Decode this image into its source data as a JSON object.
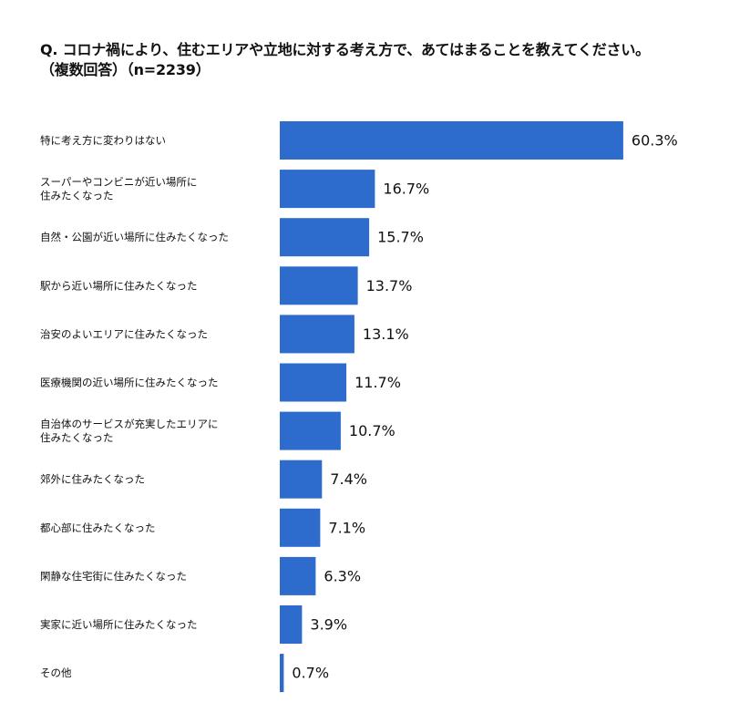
{
  "chart_data": {
    "type": "bar",
    "orientation": "horizontal",
    "title": "Q. コロナ禍により、住むエリアや立地に対する考え方で、あてはまることを教えてください。",
    "subtitle": "（複数回答）（n=2239）",
    "categories": [
      "特に考え方に変わりはない",
      "スーパーやコンビニが近い場所に\n住みたくなった",
      "自然・公園が近い場所に住みたくなった",
      "駅から近い場所に住みたくなった",
      "治安のよいエリアに住みたくなった",
      "医療機関の近い場所に住みたくなった",
      "自治体のサービスが充実したエリアに\n住みたくなった",
      "郊外に住みたくなった",
      "都心部に住みたくなった",
      "閑静な住宅街に住みたくなった",
      "実家に近い場所に住みたくなった",
      "その他"
    ],
    "values": [
      60.3,
      16.7,
      15.7,
      13.7,
      13.1,
      11.7,
      10.7,
      7.4,
      7.1,
      6.3,
      3.9,
      0.7
    ],
    "value_labels": [
      "60.3%",
      "16.7%",
      "15.7%",
      "13.7%",
      "13.1%",
      "11.7%",
      "10.7%",
      "7.4%",
      "7.1%",
      "6.3%",
      "3.9%",
      "0.7%"
    ],
    "unit": "%",
    "xlim": [
      0,
      100
    ],
    "grid": false,
    "legend": "none",
    "bar_color": "#2d6ccd"
  }
}
